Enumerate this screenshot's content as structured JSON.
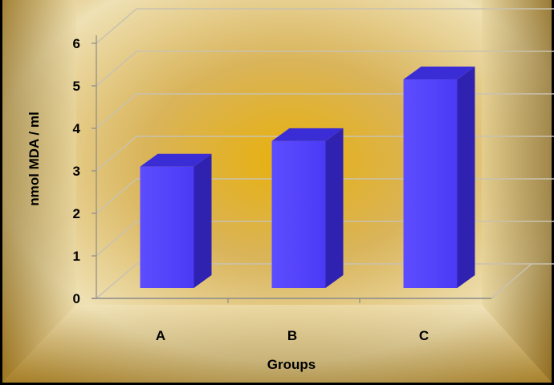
{
  "chart_data": {
    "type": "bar",
    "title": "",
    "xlabel": "Groups",
    "ylabel": "nmol MDA / ml",
    "categories": [
      "A",
      "B",
      "C"
    ],
    "values": [
      3.1,
      3.7,
      5.15
    ],
    "ylim": [
      0,
      6
    ],
    "yticks": [
      0,
      1,
      2,
      3,
      4,
      5,
      6
    ],
    "grid": true,
    "legend": "none",
    "style": "3d",
    "colors": {
      "bar_front": "#5544ff",
      "bar_side": "#2f22b0",
      "bar_top": "#3b2dd6",
      "gridline": "#c9c2b0",
      "background_light": "#f6e7b2",
      "background_dark": "#a07818",
      "frame_border": "#000000"
    }
  }
}
